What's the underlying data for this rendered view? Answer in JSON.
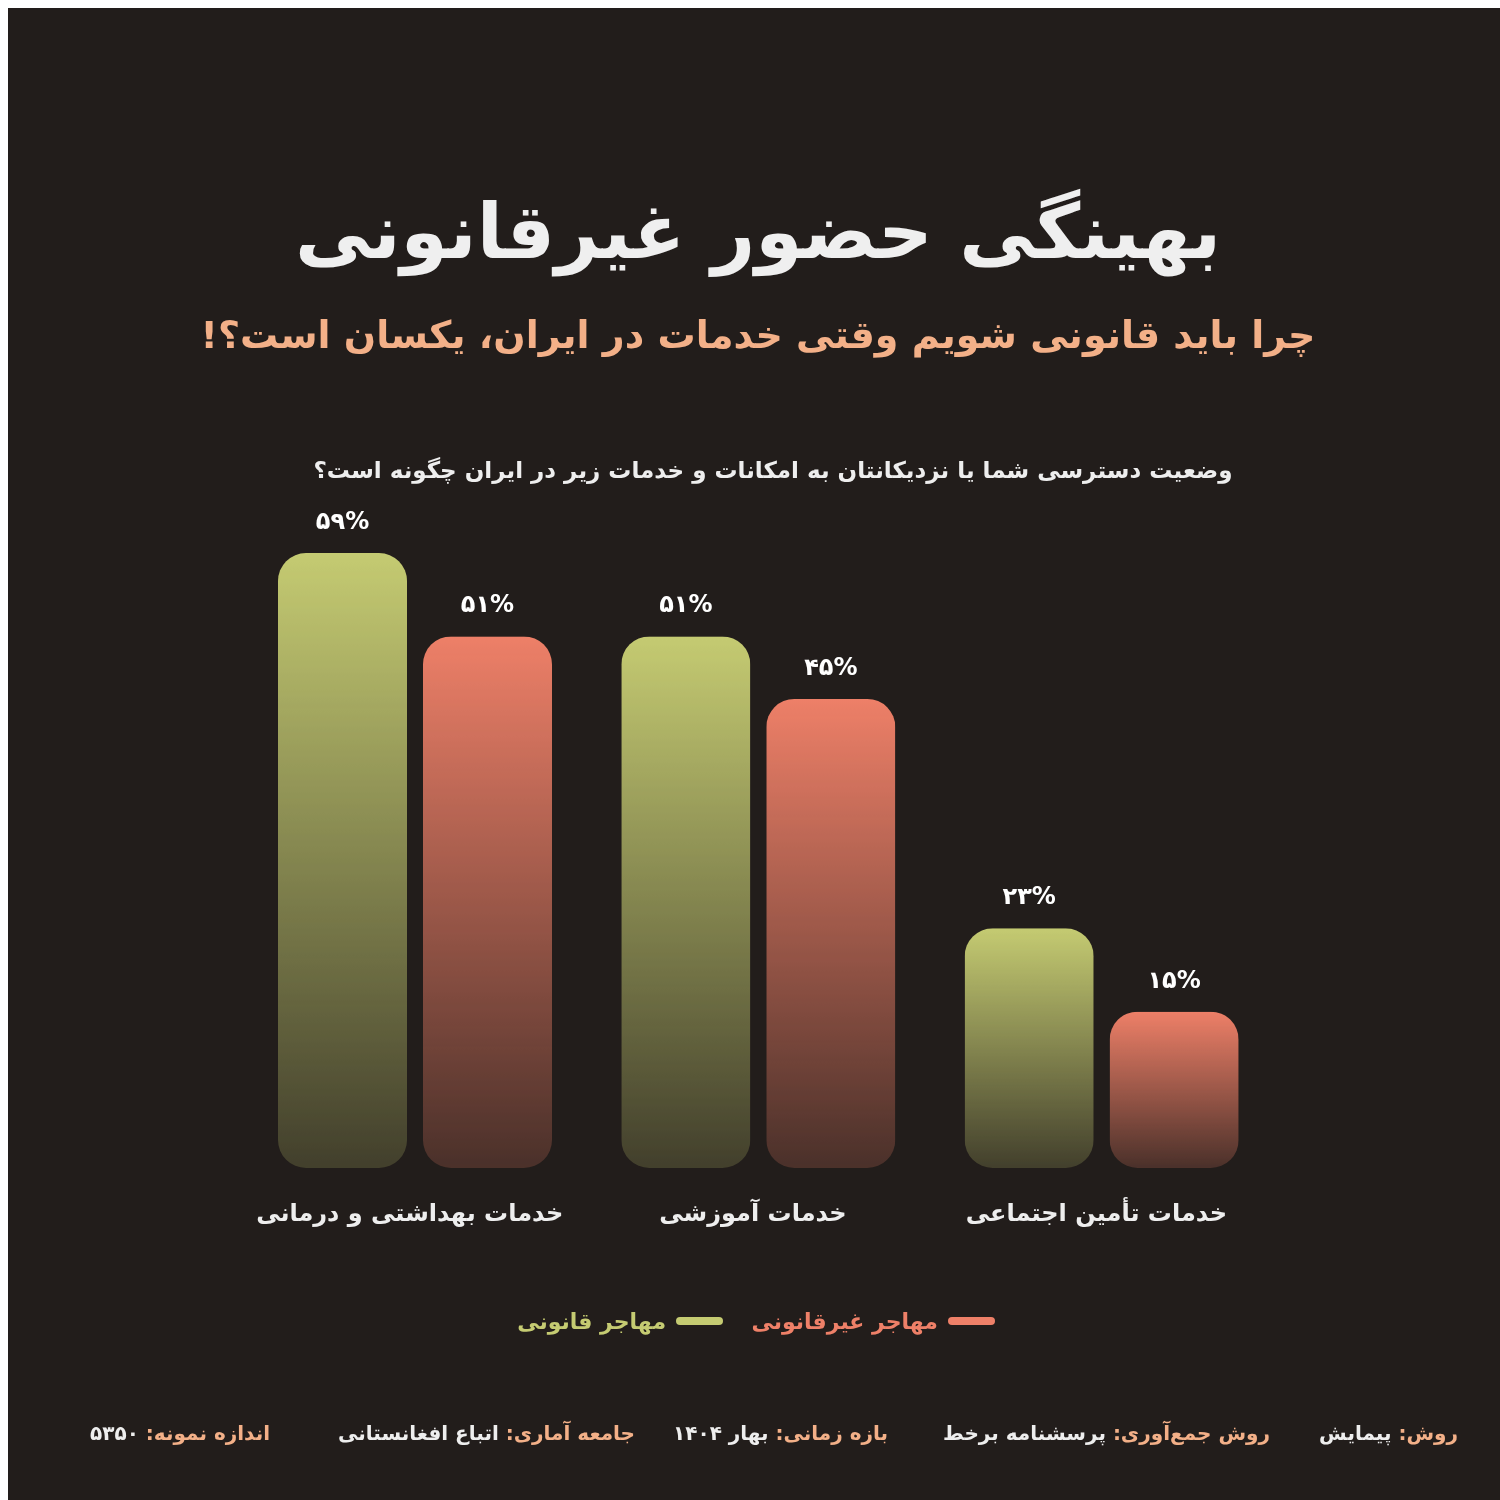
{
  "chart_data": {
    "type": "bar",
    "title": "بهینگی حضور غیرقانونی",
    "subtitle": "چرا باید قانونی شویم وقتی خدمات در ایران، یکسان است؟!",
    "categories": [
      "خدمات بهداشتی و درمانی",
      "خدمات آموزشی",
      "خدمات تأمین اجتماعی"
    ],
    "series": [
      {
        "name": "مهاجر قانونی",
        "color": "#c5cb72",
        "values": [
          59,
          51,
          23
        ],
        "value_labels": [
          "۵۹%",
          "۵۱%",
          "۲۳%"
        ]
      },
      {
        "name": "مهاجر غیرقانونی",
        "color": "#ee8068",
        "values": [
          51,
          45,
          15
        ],
        "value_labels": [
          "۵۱%",
          "۴۵%",
          "۱۵%"
        ]
      }
    ],
    "legend": "bottom",
    "grid": false,
    "annotations": [
      "وضعیت دسترسی شما یا نزدیکانتان به امکانات و خدمات زیر در ایران چگونه است؟",
      "روش: پیمایش",
      "روش جمع‌آوری: پرسشنامه برخط",
      "بازه زمانی: بهار ۱۴۰۴",
      "جامعه آماری: اتباع افغانستانی",
      "اندازه نمونه: ۵۳۵۰"
    ]
  }
}
